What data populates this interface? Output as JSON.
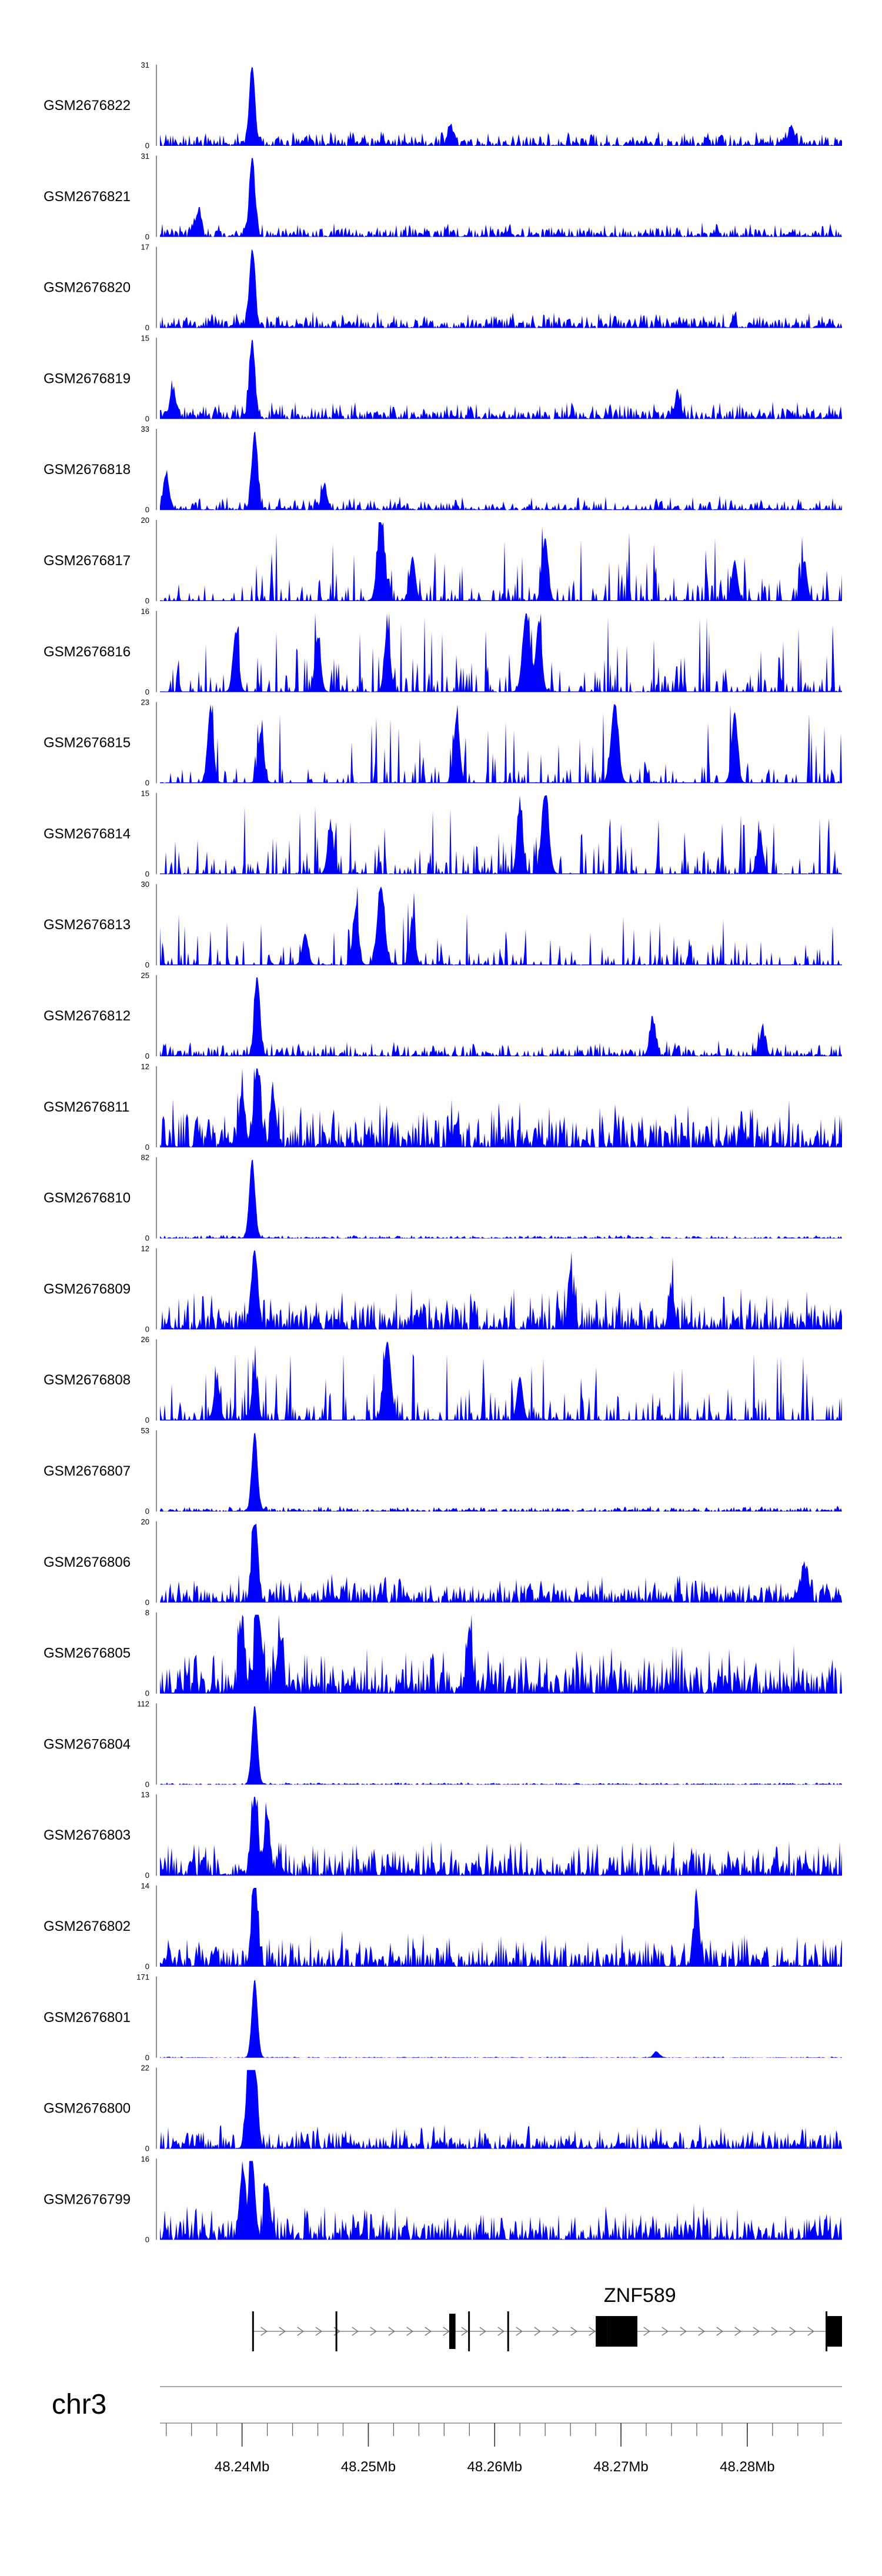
{
  "chart_data": {
    "type": "area",
    "title": "",
    "chromosome": "chr3",
    "x_range_mb": [
      48.2335,
      48.2875
    ],
    "color": "#0000ff",
    "tracks": [
      {
        "name": "GSM2676822",
        "ymax": 31,
        "peak_mb": 48.2408,
        "peak": 31,
        "bg": 0.13,
        "sparse": 0.0,
        "sharp": 1.0,
        "seed": 22,
        "extra": [
          [
            48.2565,
            0.25
          ],
          [
            48.2835,
            0.25
          ]
        ]
      },
      {
        "name": "GSM2676821",
        "ymax": 31,
        "peak_mb": 48.2408,
        "peak": 31,
        "bg": 0.12,
        "sparse": 0.0,
        "sharp": 1.0,
        "seed": 21,
        "extra": [
          [
            48.2365,
            0.3
          ]
        ]
      },
      {
        "name": "GSM2676820",
        "ymax": 17,
        "peak_mb": 48.2408,
        "peak": 17,
        "bg": 0.14,
        "sparse": 0.0,
        "sharp": 1.0,
        "seed": 20,
        "extra": []
      },
      {
        "name": "GSM2676819",
        "ymax": 15,
        "peak_mb": 48.2408,
        "peak": 15,
        "bg": 0.15,
        "sparse": 0.0,
        "sharp": 1.0,
        "seed": 19,
        "extra": [
          [
            48.2345,
            0.35
          ],
          [
            48.2745,
            0.3
          ]
        ]
      },
      {
        "name": "GSM2676818",
        "ymax": 33,
        "peak_mb": 48.241,
        "peak": 33,
        "bg": 0.12,
        "sparse": 0.3,
        "sharp": 1.0,
        "seed": 18,
        "extra": [
          [
            48.234,
            0.45
          ],
          [
            48.2465,
            0.3
          ]
        ]
      },
      {
        "name": "GSM2676817",
        "ymax": 20,
        "peak_mb": 48.251,
        "peak": 20,
        "bg": 0.3,
        "sparse": 0.75,
        "sharp": 0.6,
        "seed": 17,
        "extra": [
          [
            48.264,
            0.8
          ],
          [
            48.2535,
            0.55
          ],
          [
            48.279,
            0.5
          ],
          [
            48.2845,
            0.5
          ]
        ]
      },
      {
        "name": "GSM2676816",
        "ymax": 16,
        "peak_mb": 48.2625,
        "peak": 16,
        "bg": 0.32,
        "sparse": 0.7,
        "sharp": 0.6,
        "seed": 16,
        "extra": [
          [
            48.2635,
            0.9
          ],
          [
            48.2515,
            0.8
          ],
          [
            48.246,
            0.7
          ],
          [
            48.2395,
            0.75
          ]
        ]
      },
      {
        "name": "GSM2676815",
        "ymax": 23,
        "peak_mb": 48.2695,
        "peak": 23,
        "bg": 0.3,
        "sparse": 0.8,
        "sharp": 0.6,
        "seed": 15,
        "extra": [
          [
            48.2375,
            0.95
          ],
          [
            48.257,
            0.85
          ],
          [
            48.279,
            0.9
          ],
          [
            48.2415,
            0.65
          ]
        ]
      },
      {
        "name": "GSM2676814",
        "ymax": 15,
        "peak_mb": 48.264,
        "peak": 15,
        "bg": 0.3,
        "sparse": 0.75,
        "sharp": 0.6,
        "seed": 14,
        "extra": [
          [
            48.262,
            0.85
          ],
          [
            48.247,
            0.6
          ],
          [
            48.281,
            0.5
          ]
        ]
      },
      {
        "name": "GSM2676813",
        "ymax": 30,
        "peak_mb": 48.251,
        "peak": 30,
        "bg": 0.22,
        "sparse": 0.75,
        "sharp": 0.6,
        "seed": 13,
        "extra": [
          [
            48.249,
            0.7
          ],
          [
            48.2535,
            0.5
          ],
          [
            48.245,
            0.4
          ]
        ]
      },
      {
        "name": "GSM2676812",
        "ymax": 25,
        "peak_mb": 48.2412,
        "peak": 25,
        "bg": 0.13,
        "sparse": 0.25,
        "sharp": 1.0,
        "seed": 12,
        "extra": [
          [
            48.2725,
            0.45
          ],
          [
            48.2812,
            0.3
          ]
        ]
      },
      {
        "name": "GSM2676811",
        "ymax": 12,
        "peak_mb": 48.2412,
        "peak": 12,
        "bg": 0.4,
        "sparse": 0.1,
        "sharp": 0.7,
        "seed": 11,
        "extra": [
          [
            48.24,
            0.7
          ],
          [
            48.2425,
            0.6
          ]
        ]
      },
      {
        "name": "GSM2676810",
        "ymax": 82,
        "peak_mb": 48.2408,
        "peak": 82,
        "bg": 0.03,
        "sparse": 0.0,
        "sharp": 1.0,
        "seed": 10,
        "extra": []
      },
      {
        "name": "GSM2676809",
        "ymax": 12,
        "peak_mb": 48.241,
        "peak": 12,
        "bg": 0.35,
        "sparse": 0.1,
        "sharp": 0.8,
        "seed": 9,
        "extra": [
          [
            48.266,
            0.5
          ],
          [
            48.274,
            0.5
          ]
        ]
      },
      {
        "name": "GSM2676808",
        "ymax": 26,
        "peak_mb": 48.2515,
        "peak": 26,
        "bg": 0.3,
        "sparse": 0.65,
        "sharp": 0.6,
        "seed": 8,
        "extra": [
          [
            48.241,
            0.6
          ],
          [
            48.262,
            0.55
          ],
          [
            48.238,
            0.5
          ]
        ]
      },
      {
        "name": "GSM2676807",
        "ymax": 53,
        "peak_mb": 48.241,
        "peak": 53,
        "bg": 0.05,
        "sparse": 0.0,
        "sharp": 1.0,
        "seed": 7,
        "extra": []
      },
      {
        "name": "GSM2676806",
        "ymax": 20,
        "peak_mb": 48.241,
        "peak": 20,
        "bg": 0.25,
        "sparse": 0.1,
        "sharp": 0.9,
        "seed": 6,
        "extra": [
          [
            48.2845,
            0.45
          ]
        ]
      },
      {
        "name": "GSM2676805",
        "ymax": 8,
        "peak_mb": 48.2413,
        "peak": 8,
        "bg": 0.42,
        "sparse": 0.05,
        "sharp": 0.7,
        "seed": 5,
        "extra": [
          [
            48.24,
            0.8
          ],
          [
            48.258,
            0.8
          ],
          [
            48.243,
            0.7
          ]
        ]
      },
      {
        "name": "GSM2676804",
        "ymax": 112,
        "peak_mb": 48.241,
        "peak": 112,
        "bg": 0.02,
        "sparse": 0.0,
        "sharp": 1.0,
        "seed": 4,
        "extra": []
      },
      {
        "name": "GSM2676803",
        "ymax": 13,
        "peak_mb": 48.241,
        "peak": 13,
        "bg": 0.3,
        "sparse": 0.1,
        "sharp": 0.8,
        "seed": 3,
        "extra": [
          [
            48.242,
            0.7
          ]
        ]
      },
      {
        "name": "GSM2676802",
        "ymax": 14,
        "peak_mb": 48.241,
        "peak": 14,
        "bg": 0.3,
        "sparse": 0.1,
        "sharp": 0.8,
        "seed": 2,
        "extra": [
          [
            48.276,
            0.75
          ]
        ]
      },
      {
        "name": "GSM2676801",
        "ymax": 171,
        "peak_mb": 48.241,
        "peak": 171,
        "bg": 0.01,
        "sparse": 0.0,
        "sharp": 1.0,
        "seed": 1,
        "extra": [
          [
            48.2728,
            0.08
          ]
        ]
      },
      {
        "name": "GSM2676800",
        "ymax": 22,
        "peak_mb": 48.241,
        "peak": 22,
        "bg": 0.2,
        "sparse": 0.1,
        "sharp": 0.9,
        "seed": 100,
        "extra": [
          [
            48.2405,
            0.8
          ]
        ]
      },
      {
        "name": "GSM2676799",
        "ymax": 16,
        "peak_mb": 48.2408,
        "peak": 16,
        "bg": 0.3,
        "sparse": 0.1,
        "sharp": 0.9,
        "seed": 99,
        "extra": [
          [
            48.24,
            0.8
          ],
          [
            48.242,
            0.7
          ]
        ]
      }
    ],
    "gene": {
      "name": "ZNF589",
      "start_mb": 48.2408,
      "end_mb": 48.2875,
      "exons_mb": [
        [
          48.2408,
          48.24085
        ],
        [
          48.2474,
          48.24745
        ],
        [
          48.2564,
          48.2569
        ],
        [
          48.2579,
          48.258
        ],
        [
          48.261,
          48.26105
        ],
        [
          48.268,
          48.2689
        ],
        [
          48.2689,
          48.2713
        ],
        [
          48.2862,
          48.28625
        ],
        [
          48.2863,
          48.2875
        ]
      ]
    },
    "axis": {
      "label": "chr3",
      "ticks_mb": [
        48.24,
        48.25,
        48.26,
        48.27,
        48.28
      ],
      "tick_labels": [
        "48.24Mb",
        "48.25Mb",
        "48.26Mb",
        "48.27Mb",
        "48.28Mb"
      ],
      "minor_step_mb": 0.002
    }
  }
}
